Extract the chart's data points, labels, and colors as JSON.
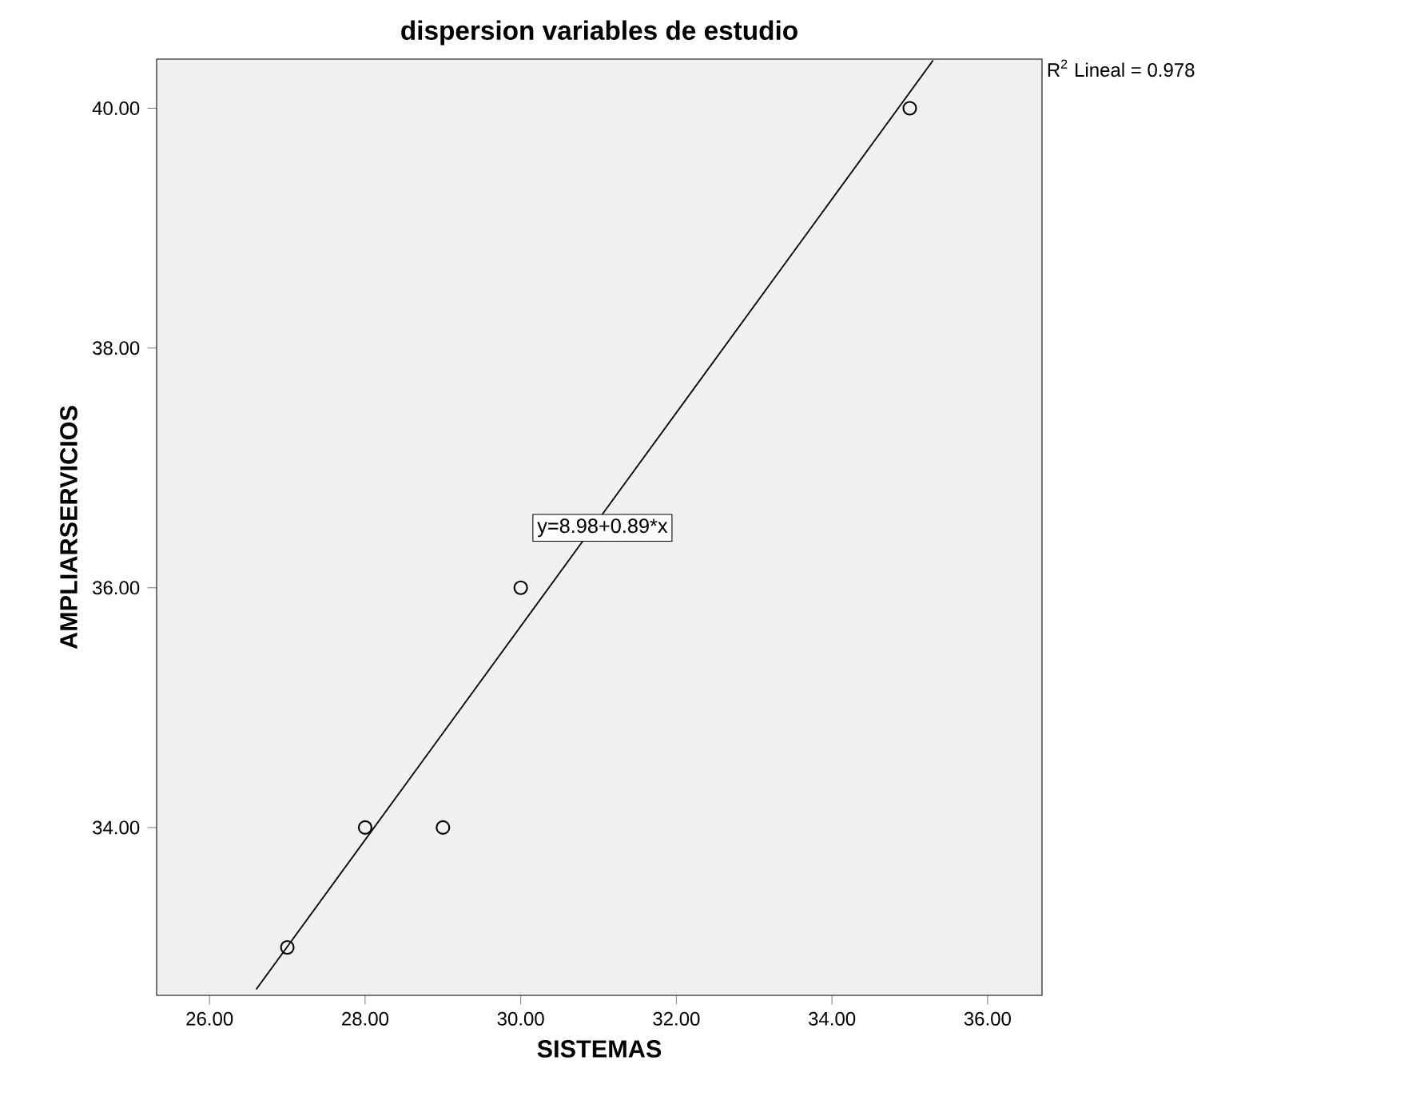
{
  "chart_data": {
    "type": "scatter",
    "title": "dispersion variables de estudio",
    "xlabel": "SISTEMAS",
    "ylabel": "AMPLIARSERVICIOS",
    "xlim": [
      25.32,
      36.7
    ],
    "ylim": [
      32.6,
      40.41
    ],
    "xticks": [
      {
        "value": 26,
        "label": "26.00"
      },
      {
        "value": 28,
        "label": "28.00"
      },
      {
        "value": 30,
        "label": "30.00"
      },
      {
        "value": 32,
        "label": "32.00"
      },
      {
        "value": 34,
        "label": "34.00"
      },
      {
        "value": 36,
        "label": "36.00"
      }
    ],
    "yticks": [
      {
        "value": 34,
        "label": "34.00"
      },
      {
        "value": 36,
        "label": "36.00"
      },
      {
        "value": 38,
        "label": "38.00"
      },
      {
        "value": 40,
        "label": "40.00"
      }
    ],
    "grid": false,
    "series": [
      {
        "color": "#000000",
        "marker": "circle",
        "x": [
          27,
          28,
          29,
          30,
          35
        ],
        "values": [
          33,
          34,
          34,
          36,
          40
        ]
      },
      {
        "type": "line",
        "color": "#000000",
        "x": [
          26.6,
          35.3
        ],
        "values": [
          32.65,
          40.4
        ]
      }
    ],
    "annotations": [
      {
        "text": "y=8.98+0.89*x",
        "x": 31.05,
        "y": 36.5
      },
      "R$^{2}$ Lineal = 0.978"
    ]
  }
}
